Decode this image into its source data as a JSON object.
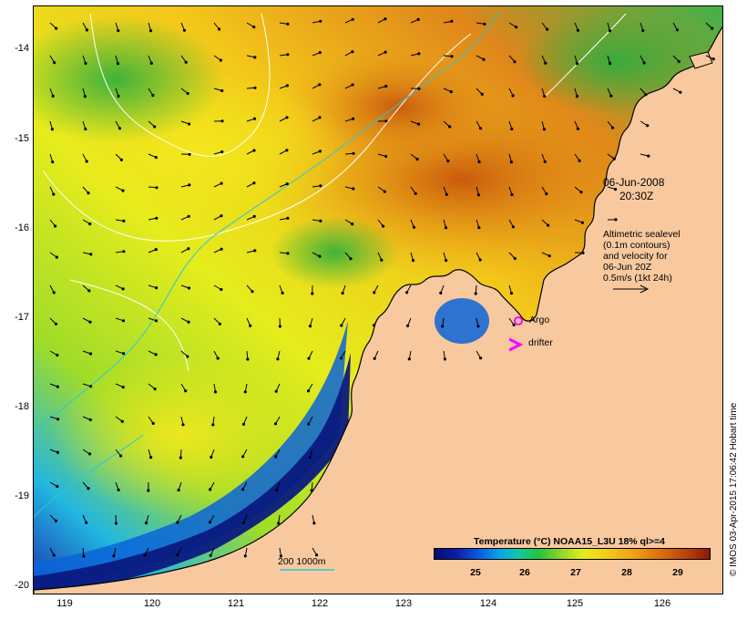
{
  "map": {
    "y_ticks": [
      "-14",
      "-15",
      "-16",
      "-17",
      "-18",
      "-19",
      "-20"
    ],
    "x_ticks": [
      "119",
      "120",
      "121",
      "122",
      "123",
      "124",
      "125",
      "126"
    ],
    "date_label": "06-Jun-2008",
    "time_label": "20:30Z",
    "legend_lines": [
      "Altimetric sealevel",
      "(0.1m contours)",
      "and velocity for",
      "06-Jun 20Z",
      "0.5m/s (1kt 24h)"
    ],
    "argo_label": "Argo",
    "drifter_label": "drifter",
    "depth_label": "200  1000m",
    "credit": "© IMOS 03-Apr-2015 17:06:42 Hobart time",
    "colorbar_title": "Temperature (°C) NOAA15_L3U 18% ql>=4",
    "colorbar_ticks": [
      "25",
      "26",
      "27",
      "28",
      "29"
    ]
  },
  "colors": {
    "land": "#f8c99f",
    "coast": "#000000",
    "argo": "#ff00ff",
    "drifter": "#ff00ff",
    "contour": "#ffffff",
    "isobath": "#28c8d8"
  }
}
